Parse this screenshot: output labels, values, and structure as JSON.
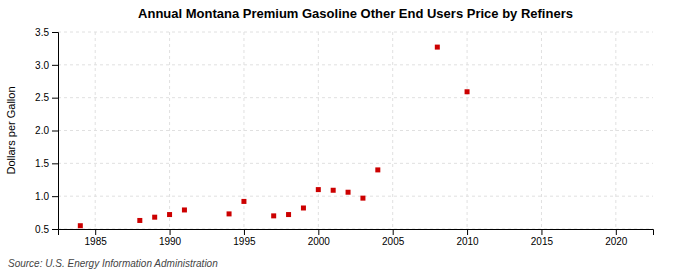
{
  "chart_data": {
    "type": "scatter",
    "title": "Annual Montana Premium Gasoline Other End Users Price by Refiners",
    "ylabel": "Dollars per Gallon",
    "source": "Source: U.S. Energy Information Administration",
    "x": [
      1984,
      1988,
      1989,
      1990,
      1991,
      1994,
      1995,
      1997,
      1998,
      1999,
      2000,
      2001,
      2002,
      2003,
      2004,
      2008,
      2010
    ],
    "values": [
      0.55,
      0.63,
      0.68,
      0.72,
      0.79,
      0.73,
      0.92,
      0.7,
      0.72,
      0.82,
      1.1,
      1.09,
      1.06,
      0.97,
      1.4,
      3.27,
      2.59
    ],
    "color": "#cc0000",
    "marker": "square",
    "xlim": [
      1982.5,
      2022.5
    ],
    "ylim": [
      0.5,
      3.5
    ],
    "xticks": [
      1985,
      1990,
      1995,
      2000,
      2005,
      2010,
      2015,
      2020
    ],
    "yticks": [
      0.5,
      {
        "value": 1.0,
        "label": "1.0"
      },
      1.5,
      {
        "value": 2.0,
        "label": "2.0"
      },
      2.5,
      {
        "value": 3.0,
        "label": "3.0"
      },
      3.5
    ],
    "grid": true
  }
}
